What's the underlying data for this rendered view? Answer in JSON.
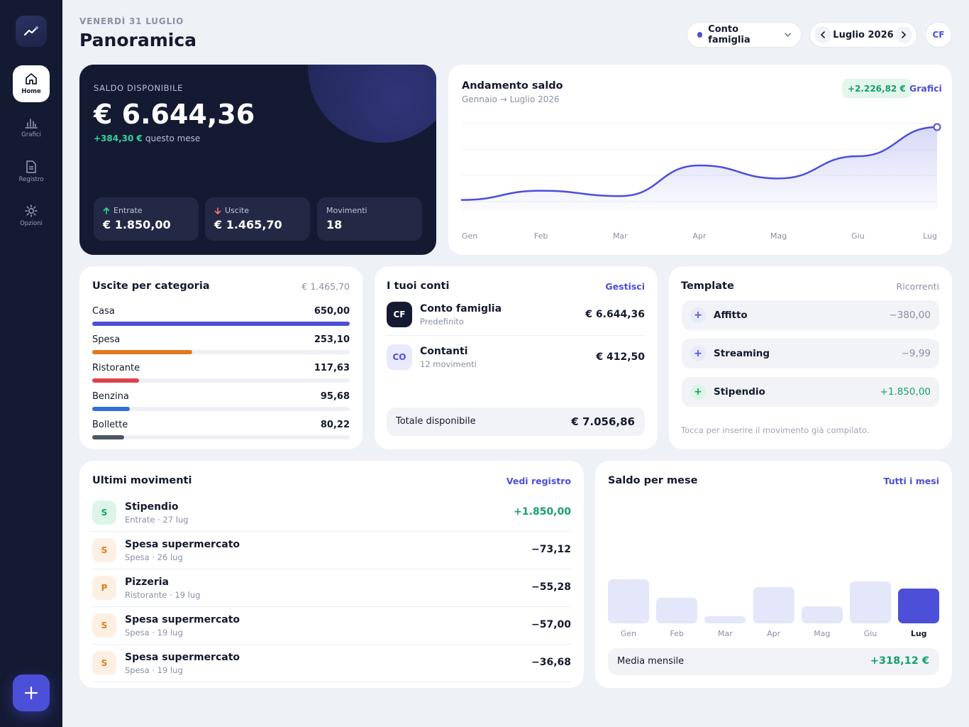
{
  "sidebar": {
    "logo_icon": "trend-up-icon",
    "items": [
      {
        "label": "Home",
        "icon": "home-icon",
        "active": true
      },
      {
        "label": "Grafici",
        "icon": "bar-chart-icon",
        "active": false
      },
      {
        "label": "Registro",
        "icon": "document-icon",
        "active": false
      },
      {
        "label": "Opzioni",
        "icon": "gear-icon",
        "active": false
      }
    ],
    "fab_icon": "plus-icon"
  },
  "header": {
    "date": "VENERDÌ 31 LUGLIO",
    "title": "Panoramica",
    "account_select": "Conto famiglia",
    "month": "Luglio 2026",
    "avatar": "CF"
  },
  "balance": {
    "label": "SALDO DISPONIBILE",
    "amount": "€ 6.644,36",
    "delta": "+384,30 €",
    "delta_text": "questo mese",
    "stats": [
      {
        "label": "Entrate",
        "value": "€ 1.850,00",
        "icon": "arrow-up-icon"
      },
      {
        "label": "Uscite",
        "value": "€ 1.465,70",
        "icon": "arrow-down-icon"
      },
      {
        "label": "Movimenti",
        "value": "18"
      }
    ]
  },
  "trend": {
    "title": "Andamento saldo",
    "subtitle": "Gennaio → Luglio 2026",
    "badge": "+2.226,82 €",
    "link": "Grafici"
  },
  "chart_data": {
    "type": "area",
    "categories": [
      "Gen",
      "Feb",
      "Mar",
      "Apr",
      "Mag",
      "Giu",
      "Lug"
    ],
    "values": [
      0.05,
      0.17,
      0.1,
      0.5,
      0.33,
      0.62,
      1.0
    ],
    "value_note_scale": "relative",
    "accent": "#4c4fd8"
  },
  "categories": {
    "title": "Uscite per categoria",
    "total": "€ 1.465,70",
    "items": [
      {
        "name": "Casa",
        "value": "650,00",
        "share": 1.0,
        "color": "#4c4fd8"
      },
      {
        "name": "Spesa",
        "value": "253,10",
        "share": 0.389,
        "color": "#e07a20"
      },
      {
        "name": "Ristorante",
        "value": "117,63",
        "share": 0.181,
        "color": "#e0424b"
      },
      {
        "name": "Benzina",
        "value": "95,68",
        "share": 0.147,
        "color": "#2f6ed8"
      },
      {
        "name": "Bollette",
        "value": "80,22",
        "share": 0.123,
        "color": "#4b5563"
      }
    ]
  },
  "accounts": {
    "title": "I tuoi conti",
    "link": "Gestisci",
    "items": [
      {
        "initials": "CF",
        "name": "Conto famiglia",
        "sub": "Predefinito",
        "amount": "€ 6.644,36",
        "dark": true
      },
      {
        "initials": "CO",
        "name": "Contanti",
        "sub": "12 movimenti",
        "amount": "€ 412,50",
        "dark": false
      }
    ],
    "total_label": "Totale disponibile",
    "total_value": "€ 7.056,86"
  },
  "templates": {
    "title": "Template",
    "tag": "Ricorrenti",
    "items": [
      {
        "name": "Affitto",
        "amount": "−380,00",
        "positive": false
      },
      {
        "name": "Streaming",
        "amount": "−9,99",
        "positive": false
      },
      {
        "name": "Stipendio",
        "amount": "+1.850,00",
        "positive": true
      }
    ],
    "hint": "Tocca per inserire il movimento già compilato."
  },
  "movements": {
    "title": "Ultimi movimenti",
    "link": "Vedi registro",
    "items": [
      {
        "initial": "S",
        "name": "Stipendio",
        "sub": "Entrate · 27 lug",
        "amount": "+1.850,00",
        "kind": "income"
      },
      {
        "initial": "S",
        "name": "Spesa supermercato",
        "sub": "Spesa · 26 lug",
        "amount": "−73,12",
        "kind": "expense"
      },
      {
        "initial": "P",
        "name": "Pizzeria",
        "sub": "Ristorante · 19 lug",
        "amount": "−55,28",
        "kind": "expense"
      },
      {
        "initial": "S",
        "name": "Spesa supermercato",
        "sub": "Spesa · 19 lug",
        "amount": "−57,00",
        "kind": "expense"
      },
      {
        "initial": "S",
        "name": "Spesa supermercato",
        "sub": "Spesa · 19 lug",
        "amount": "−36,68",
        "kind": "expense"
      }
    ]
  },
  "monthly": {
    "title": "Saldo per mese",
    "link": "Tutti i mesi",
    "months": [
      {
        "label": "Gen",
        "level": 1.0,
        "current": false
      },
      {
        "label": "Feb",
        "level": 0.58,
        "current": false
      },
      {
        "label": "Mar",
        "level": 0.16,
        "current": false
      },
      {
        "label": "Apr",
        "level": 0.82,
        "current": false
      },
      {
        "label": "Mag",
        "level": 0.39,
        "current": false
      },
      {
        "label": "Giu",
        "level": 0.95,
        "current": false
      },
      {
        "label": "Lug",
        "level": 0.79,
        "current": true
      }
    ],
    "avg_label": "Media mensile",
    "avg_value": "+318,12 €"
  }
}
